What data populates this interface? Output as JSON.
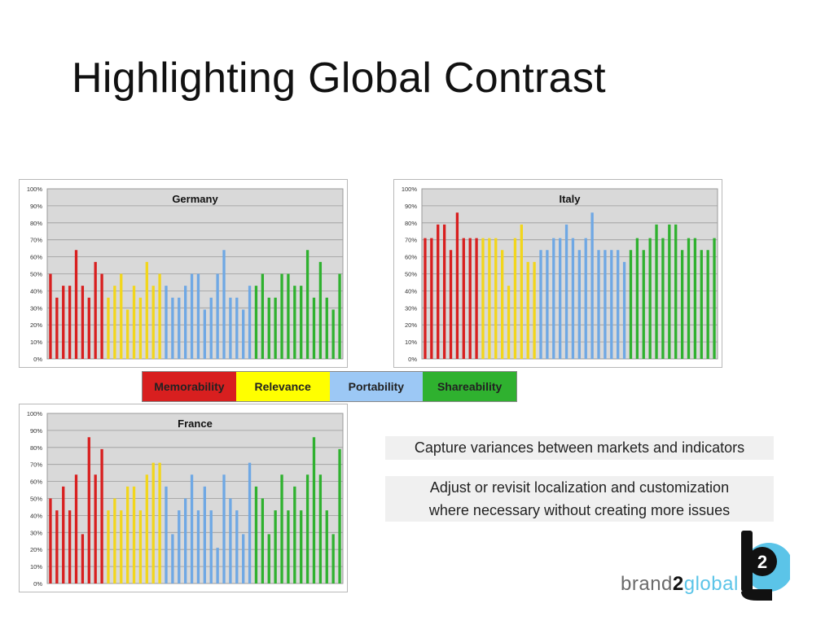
{
  "title": "Highlighting Global Contrast",
  "legend": [
    {
      "label": "Memorability",
      "color": "#d81f1f",
      "text_color": "#333333"
    },
    {
      "label": "Relevance",
      "color": "#ffff00",
      "text_color": "#222222"
    },
    {
      "label": "Portability",
      "color": "#9cc8f5",
      "text_color": "#222222"
    },
    {
      "label": "Shareability",
      "color": "#2fb12f",
      "text_color": "#222222"
    }
  ],
  "notes": [
    "Capture variances between markets and indicators",
    "Adjust or revisit localization and customization where necessary without creating more issues"
  ],
  "logo": {
    "pre": "brand",
    "two": "2",
    "post": "global",
    "badge": "2"
  },
  "chart_data": [
    {
      "type": "bar",
      "title": "Germany",
      "ylim": [
        0,
        100
      ],
      "yticks": [
        "0%",
        "10%",
        "20%",
        "30%",
        "40%",
        "50%",
        "60%",
        "70%",
        "80%",
        "90%",
        "100%"
      ],
      "grid": true,
      "colors": {
        "memorability": "#d81f1f",
        "relevance": "#f2d61c",
        "portability": "#6fa8e4",
        "shareability": "#2fb12f"
      },
      "series": [
        {
          "group": "memorability",
          "values": [
            50,
            36,
            43,
            43,
            64,
            43,
            36,
            57,
            50
          ]
        },
        {
          "group": "relevance",
          "values": [
            36,
            43,
            50,
            29,
            43,
            36,
            57,
            43,
            50
          ]
        },
        {
          "group": "portability",
          "values": [
            43,
            36,
            36,
            43,
            50,
            50,
            29,
            36,
            50,
            64,
            36,
            36,
            29,
            43
          ]
        },
        {
          "group": "shareability",
          "values": [
            43,
            50,
            36,
            36,
            50,
            50,
            43,
            43,
            64,
            36,
            57,
            36,
            29,
            50
          ]
        }
      ]
    },
    {
      "type": "bar",
      "title": "Italy",
      "ylim": [
        0,
        100
      ],
      "yticks": [
        "0%",
        "10%",
        "20%",
        "30%",
        "40%",
        "50%",
        "60%",
        "70%",
        "80%",
        "90%",
        "100%"
      ],
      "grid": true,
      "colors": {
        "memorability": "#d81f1f",
        "relevance": "#f2d61c",
        "portability": "#6fa8e4",
        "shareability": "#2fb12f"
      },
      "series": [
        {
          "group": "memorability",
          "values": [
            71,
            71,
            79,
            79,
            64,
            86,
            71,
            71,
            71
          ]
        },
        {
          "group": "relevance",
          "values": [
            71,
            71,
            71,
            64,
            43,
            71,
            79,
            57,
            57
          ]
        },
        {
          "group": "portability",
          "values": [
            64,
            64,
            71,
            71,
            79,
            71,
            64,
            71,
            86,
            64,
            64,
            64,
            64,
            57
          ]
        },
        {
          "group": "shareability",
          "values": [
            64,
            71,
            64,
            71,
            79,
            71,
            79,
            79,
            64,
            71,
            71,
            64,
            64,
            71
          ]
        }
      ]
    },
    {
      "type": "bar",
      "title": "France",
      "ylim": [
        0,
        100
      ],
      "yticks": [
        "0%",
        "10%",
        "20%",
        "30%",
        "40%",
        "50%",
        "60%",
        "70%",
        "80%",
        "90%",
        "100%"
      ],
      "grid": true,
      "colors": {
        "memorability": "#d81f1f",
        "relevance": "#f2d61c",
        "portability": "#6fa8e4",
        "shareability": "#2fb12f"
      },
      "series": [
        {
          "group": "memorability",
          "values": [
            50,
            43,
            57,
            43,
            64,
            29,
            86,
            64,
            79
          ]
        },
        {
          "group": "relevance",
          "values": [
            43,
            50,
            43,
            57,
            57,
            43,
            64,
            71,
            71
          ]
        },
        {
          "group": "portability",
          "values": [
            57,
            29,
            43,
            50,
            64,
            43,
            57,
            43,
            21,
            64,
            50,
            43,
            29,
            71
          ]
        },
        {
          "group": "shareability",
          "values": [
            57,
            50,
            29,
            43,
            64,
            43,
            57,
            43,
            64,
            86,
            64,
            43,
            29,
            79
          ]
        }
      ]
    }
  ]
}
